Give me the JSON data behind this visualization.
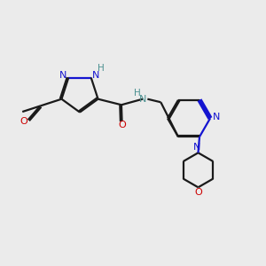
{
  "bg_color": "#ebebeb",
  "bond_color": "#1a1a1a",
  "n_color": "#1414d0",
  "o_color": "#cc0000",
  "teal_color": "#4a9090",
  "line_width": 1.6,
  "dbo": 0.06,
  "xlim": [
    0,
    10
  ],
  "ylim": [
    0,
    10
  ]
}
